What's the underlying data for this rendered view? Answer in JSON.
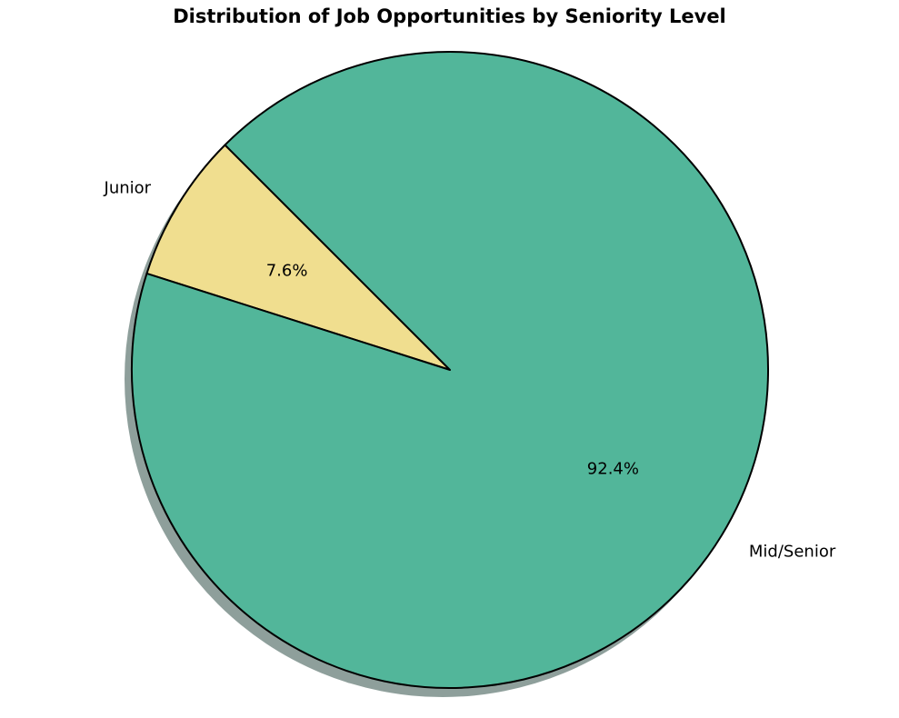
{
  "chart_data": {
    "type": "pie",
    "title": "Distribution of Job Opportunities by Seniority Level",
    "categories": [
      "Junior",
      "Mid/Senior"
    ],
    "values": [
      7.6,
      92.4
    ],
    "percent_labels": [
      "7.6%",
      "92.4%"
    ],
    "colors": [
      "#f0de8f",
      "#52b69a"
    ],
    "shadow": true,
    "legend": "none"
  }
}
